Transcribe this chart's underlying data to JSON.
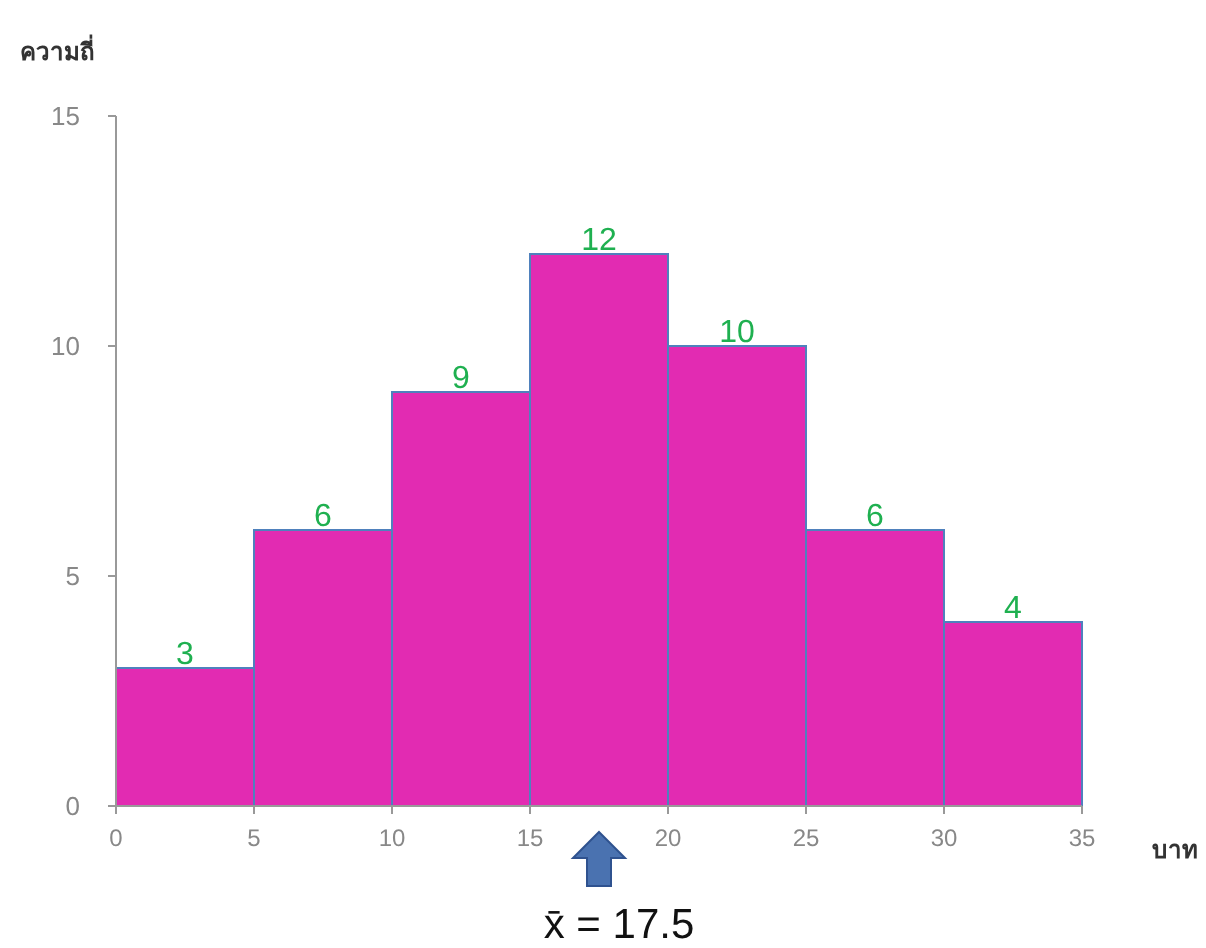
{
  "chart_data": {
    "type": "histogram",
    "xlabel": "บาท",
    "ylabel": "ความถี่",
    "bins": [
      0,
      5,
      10,
      15,
      20,
      25,
      30,
      35
    ],
    "values": [
      3,
      6,
      9,
      12,
      10,
      6,
      4
    ],
    "color": "#e22bb2",
    "xlim": [
      0,
      35
    ],
    "xticks": [
      0,
      5,
      10,
      15,
      20,
      25,
      30,
      35
    ],
    "ylim": [
      0,
      15
    ],
    "yticks": [
      0,
      5,
      10,
      15
    ],
    "data_labels": true,
    "annotations": [
      {
        "text": "x̄ = 17.5",
        "x": 17.5,
        "y": 0
      }
    ]
  }
}
